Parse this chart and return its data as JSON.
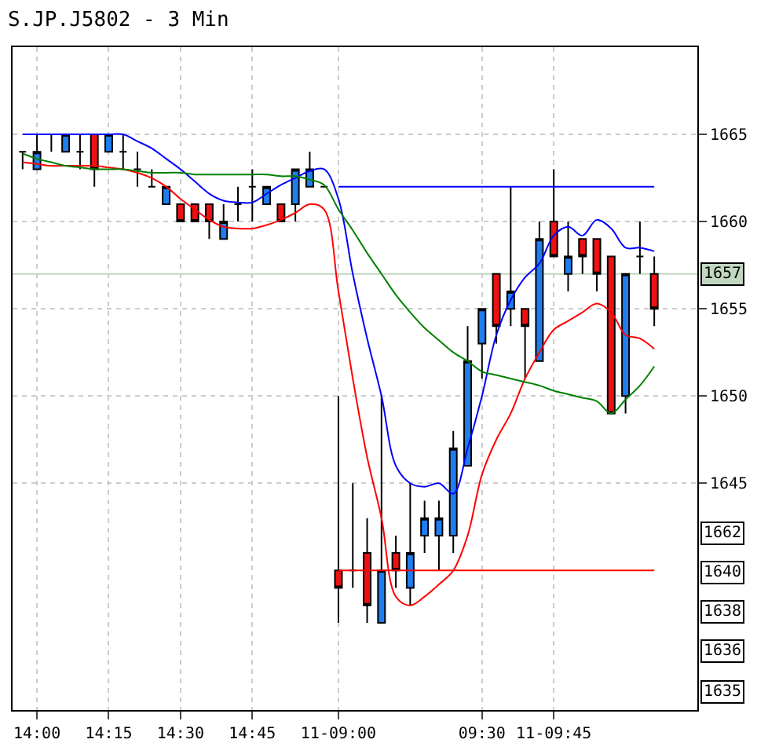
{
  "chart_data": {
    "type": "candlestick",
    "title": "S.JP.J5802 - 3 Min",
    "categories": [
      null,
      "14:00",
      null,
      null,
      null,
      null,
      "14:15",
      null,
      null,
      null,
      null,
      "14:30",
      null,
      null,
      null,
      null,
      "14:45",
      null,
      null,
      null,
      null,
      null,
      "11-09:00",
      null,
      null,
      null,
      null,
      null,
      null,
      null,
      null,
      null,
      "09:30",
      null,
      null,
      null,
      null,
      "11-09:45",
      null,
      null,
      null,
      null,
      null,
      null,
      null
    ],
    "ohlc": [
      [
        1664,
        1664,
        1663,
        1664
      ],
      [
        1663,
        1665,
        1663,
        1664
      ],
      [
        1665,
        1665,
        1664,
        1665
      ],
      [
        1664,
        1665,
        1664,
        1665
      ],
      [
        1664,
        1665,
        1663,
        1664
      ],
      [
        1665,
        1665,
        1662,
        1663
      ],
      [
        1664,
        1665,
        1664,
        1665
      ],
      [
        1664,
        1665,
        1663,
        1664
      ],
      [
        1663,
        1664,
        1662,
        1663
      ],
      [
        1662,
        1663,
        1662,
        1662
      ],
      [
        1661,
        1662,
        1661,
        1662
      ],
      [
        1661,
        1661,
        1660,
        1660
      ],
      [
        1661,
        1661,
        1660,
        1660
      ],
      [
        1661,
        1661,
        1659,
        1660
      ],
      [
        1659,
        1661,
        1659,
        1660
      ],
      [
        1661,
        1662,
        1660,
        1661
      ],
      [
        1662,
        1663,
        1660,
        1662
      ],
      [
        1661,
        1662,
        1661,
        1662
      ],
      [
        1661,
        1661,
        1660,
        1660
      ],
      [
        1661,
        1663,
        1660,
        1663
      ],
      [
        1662,
        1664,
        1662,
        1663
      ],
      [
        1662,
        1662,
        1662,
        1662
      ],
      [
        1640,
        1650,
        1637,
        1639
      ],
      [
        1640,
        1645,
        1639,
        1640
      ],
      [
        1641,
        1643,
        1637,
        1638
      ],
      [
        1637,
        1650,
        1637,
        1640
      ],
      [
        1641,
        1642,
        1639,
        1640
      ],
      [
        1639,
        1645,
        1638,
        1641
      ],
      [
        1642,
        1644,
        1641,
        1643
      ],
      [
        1642,
        1644,
        1640,
        1643
      ],
      [
        1642,
        1648,
        1641,
        1647
      ],
      [
        1646,
        1654,
        1646,
        1652
      ],
      [
        1653,
        1655,
        1651,
        1655
      ],
      [
        1657,
        1657,
        1653,
        1654
      ],
      [
        1655,
        1662,
        1654,
        1656
      ],
      [
        1655,
        1655,
        1651,
        1654
      ],
      [
        1652,
        1660,
        1652,
        1659
      ],
      [
        1660,
        1663,
        1658,
        1658
      ],
      [
        1657,
        1660,
        1656,
        1658
      ],
      [
        1659,
        1659,
        1657,
        1658
      ],
      [
        1659,
        1659,
        1656,
        1657
      ],
      [
        1658,
        1658,
        1649,
        1649
      ],
      [
        1650,
        1657,
        1649,
        1657
      ],
      [
        1658,
        1660,
        1657,
        1658
      ],
      [
        1657,
        1658,
        1654,
        1655
      ]
    ],
    "colors": [
      "#000000",
      "#1e7ef0",
      "#000000",
      "#1e7ef0",
      "#000000",
      "#ee1111",
      "#1e7ef0",
      "#000000",
      "#000000",
      "#000000",
      "#1e7ef0",
      "#ee1111",
      "#ee1111",
      "#ee1111",
      "#1e7ef0",
      "#000000",
      "#000000",
      "#1e7ef0",
      "#ee1111",
      "#1e7ef0",
      "#1e7ef0",
      "#000000",
      "#ee1111",
      "#000000",
      "#ee1111",
      "#1e7ef0",
      "#ee1111",
      "#1e7ef0",
      "#1e7ef0",
      "#1e7ef0",
      "#1e7ef0",
      "#1e7ef0",
      "#1e7ef0",
      "#ee1111",
      "#1e7ef0",
      "#ee1111",
      "#1e7ef0",
      "#ee1111",
      "#1e7ef0",
      "#ee1111",
      "#ee1111",
      "#ee1111",
      "#1e7ef0",
      "#000000",
      "#ee1111"
    ],
    "series": [
      {
        "type": "line",
        "color": "#0000ff",
        "values": [
          1665.0,
          1665.0,
          1665.0,
          1665.0,
          1665.0,
          1665.0,
          1665.0,
          1665.0,
          1664.6,
          1664.2,
          1663.6,
          1663.0,
          1662.3,
          1661.6,
          1661.2,
          1661.1,
          1661.1,
          1661.6,
          1662.1,
          1662.5,
          1662.9,
          1663.0,
          1661.3,
          1657.0,
          1653.3,
          1650.0,
          1646.0,
          1645.0,
          1644.8,
          1645.0,
          1644.4,
          1647.0,
          1650.0,
          1653.5,
          1655.5,
          1656.8,
          1657.6,
          1659.2,
          1659.7,
          1659.2,
          1660.1,
          1659.6,
          1658.5,
          1658.5,
          1658.3
        ]
      },
      {
        "type": "line",
        "color": "#ff0000",
        "values": [
          1663.4,
          1663.3,
          1663.2,
          1663.2,
          1663.2,
          1663.2,
          1663.1,
          1663.0,
          1662.8,
          1662.5,
          1662.0,
          1661.3,
          1660.7,
          1660.1,
          1659.7,
          1659.6,
          1659.6,
          1659.8,
          1660.1,
          1660.5,
          1661.0,
          1660.7,
          1656.0,
          1651.0,
          1646.5,
          1643.0,
          1638.5,
          1638.0,
          1638.5,
          1639.2,
          1640.0,
          1642.0,
          1645.5,
          1647.5,
          1649.0,
          1651.0,
          1652.5,
          1653.8,
          1654.3,
          1654.8,
          1655.3,
          1654.8,
          1653.5,
          1653.3,
          1652.7
        ]
      },
      {
        "type": "line",
        "color": "#008000",
        "values": [
          1663.9,
          1663.6,
          1663.4,
          1663.2,
          1663.1,
          1663.0,
          1663.0,
          1663.0,
          1662.9,
          1662.8,
          1662.8,
          1662.8,
          1662.7,
          1662.7,
          1662.7,
          1662.7,
          1662.7,
          1662.7,
          1662.6,
          1662.6,
          1662.4,
          1662.1,
          1660.7,
          1659.5,
          1658.2,
          1657.0,
          1655.8,
          1654.8,
          1653.9,
          1653.2,
          1652.5,
          1652.0,
          1651.4,
          1651.2,
          1651.0,
          1650.8,
          1650.6,
          1650.3,
          1650.1,
          1649.9,
          1649.7,
          1649.0,
          1649.8,
          1650.6,
          1651.7
        ]
      },
      {
        "type": "step",
        "color": "#0000ff",
        "values": [
          null,
          null,
          null,
          null,
          null,
          null,
          null,
          null,
          null,
          null,
          null,
          null,
          null,
          null,
          null,
          null,
          null,
          null,
          null,
          null,
          null,
          null,
          1662,
          1662,
          1662,
          1662,
          1662,
          1662,
          1662,
          1662,
          1662,
          1662,
          1662,
          1662,
          1662,
          1662,
          1662,
          1662,
          1662,
          1662,
          1662,
          1662,
          1662,
          1662,
          1662
        ]
      },
      {
        "type": "step",
        "color": "#ff0000",
        "values": [
          null,
          null,
          null,
          null,
          null,
          null,
          null,
          null,
          null,
          null,
          null,
          null,
          null,
          null,
          null,
          null,
          null,
          null,
          null,
          null,
          null,
          null,
          1640,
          1640,
          1640,
          1640,
          1640,
          1640,
          1640,
          1640,
          1640,
          1640,
          1640,
          1640,
          1640,
          1640,
          1640,
          1640,
          1640,
          1640,
          1640,
          1640,
          1640,
          1640,
          1640
        ]
      }
    ],
    "ref_lines": [
      {
        "axis": "y",
        "value": 1657,
        "label": "1657",
        "color": "#c0d8c0"
      }
    ],
    "annotations": [
      "1662",
      "1640",
      "1638",
      "1636",
      "1635"
    ],
    "ylim": [
      1632,
      1670
    ],
    "yticks": [
      1645,
      1650,
      1655,
      1660,
      1665
    ],
    "grid": true
  }
}
